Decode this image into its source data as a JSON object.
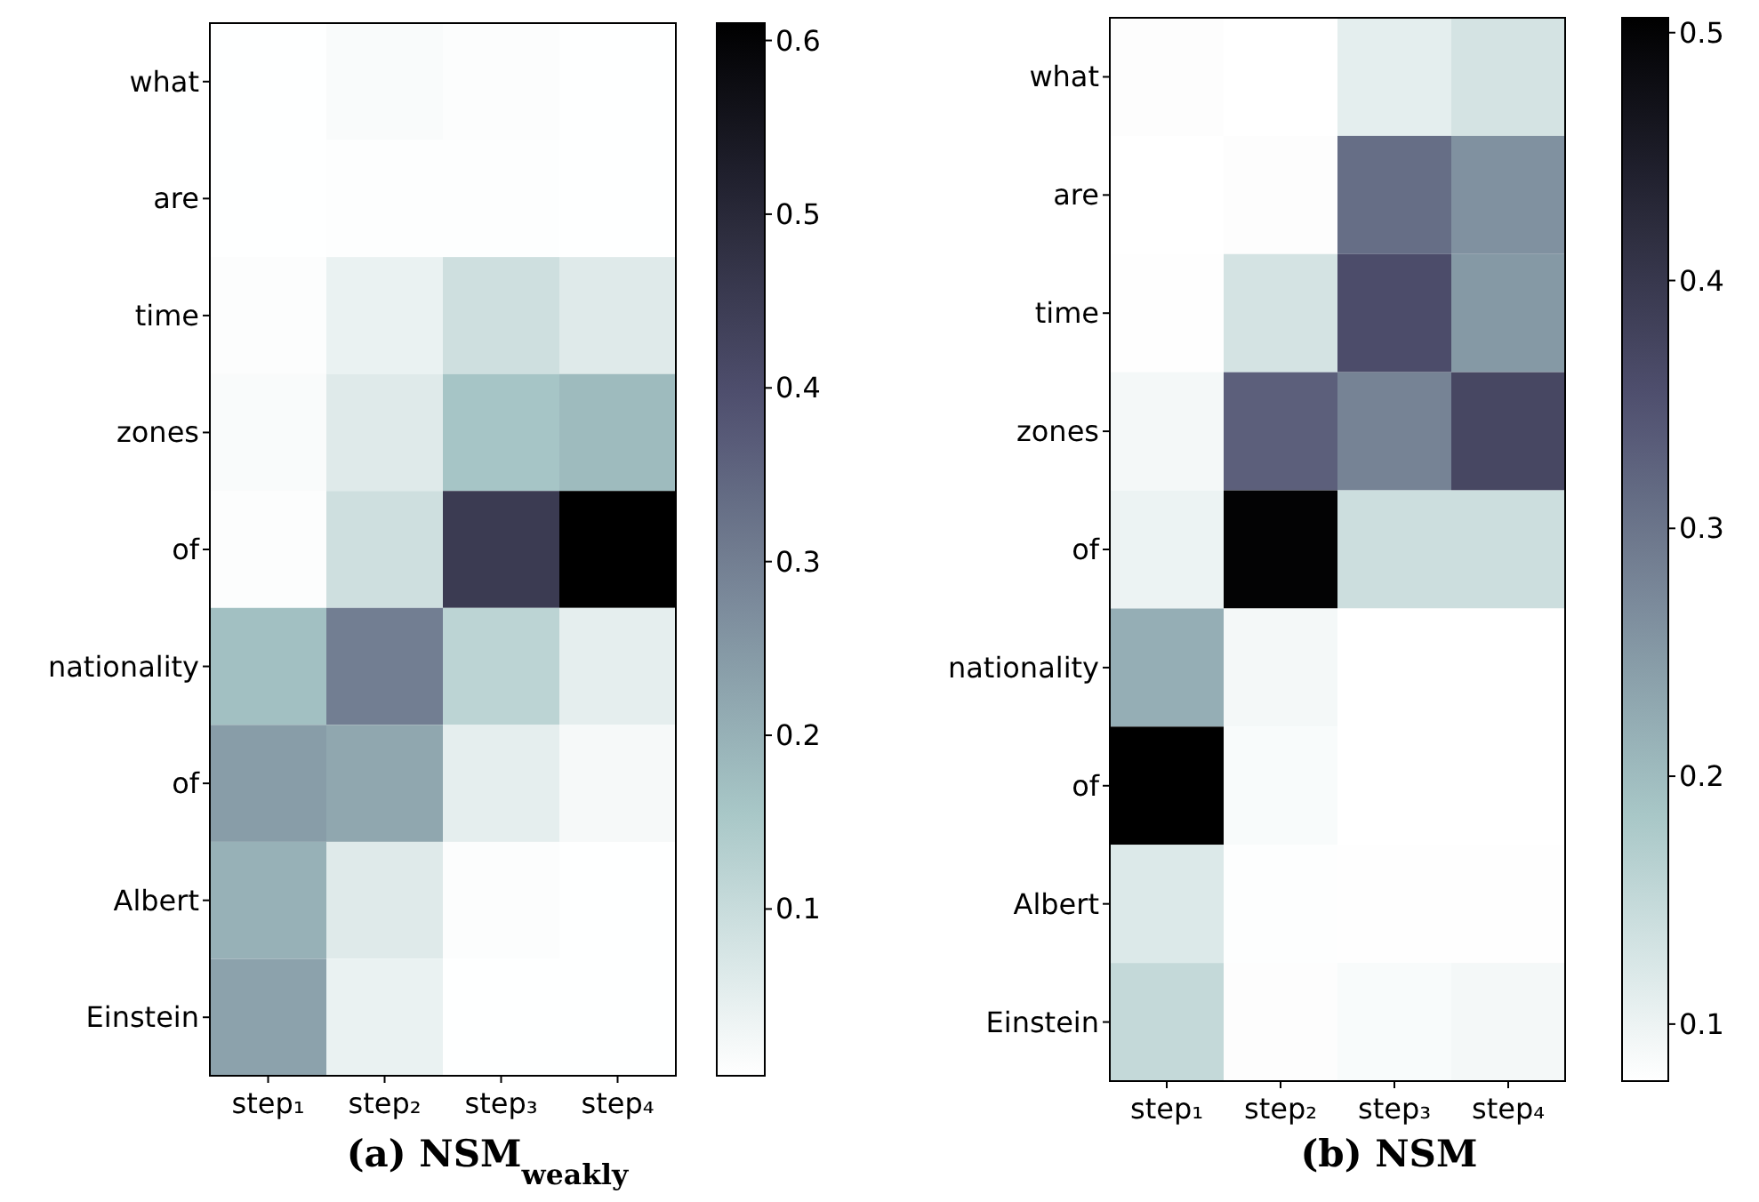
{
  "chart_data": [
    {
      "type": "heatmap",
      "title": "(a) NSM$_{weakly}$",
      "categories": [
        "step₁",
        "step₂",
        "step₃",
        "step₄"
      ],
      "y_categories": [
        "what",
        "are",
        "time",
        "zones",
        "of",
        "nationality",
        "of",
        "Albert",
        "Einstein"
      ],
      "cells": [
        [
          0.005,
          0.015,
          0.01,
          0.005
        ],
        [
          0.005,
          0.008,
          0.008,
          0.005
        ],
        [
          0.01,
          0.04,
          0.09,
          0.06
        ],
        [
          0.015,
          0.06,
          0.16,
          0.18
        ],
        [
          0.01,
          0.09,
          0.45,
          0.61
        ],
        [
          0.17,
          0.3,
          0.12,
          0.05
        ],
        [
          0.24,
          0.22,
          0.05,
          0.02
        ],
        [
          0.2,
          0.06,
          0.01,
          0.005
        ],
        [
          0.23,
          0.04,
          0.005,
          0.005
        ]
      ],
      "clim": [
        0.004,
        0.61
      ],
      "cticks": [
        0.1,
        0.2,
        0.3,
        0.4,
        0.5,
        0.6
      ]
    },
    {
      "type": "heatmap",
      "title": "(b) NSM",
      "categories": [
        "step₁",
        "step₂",
        "step₃",
        "step₄"
      ],
      "y_categories": [
        "what",
        "are",
        "time",
        "zones",
        "of",
        "nationality",
        "of",
        "Albert",
        "Einstein"
      ],
      "cells": [
        [
          0.08,
          0.077,
          0.11,
          0.13
        ],
        [
          0.077,
          0.08,
          0.31,
          0.26
        ],
        [
          0.078,
          0.13,
          0.36,
          0.25
        ],
        [
          0.09,
          0.33,
          0.28,
          0.37
        ],
        [
          0.1,
          0.5,
          0.14,
          0.14
        ],
        [
          0.22,
          0.09,
          0.077,
          0.077
        ],
        [
          0.506,
          0.085,
          0.077,
          0.077
        ],
        [
          0.12,
          0.079,
          0.078,
          0.078
        ],
        [
          0.15,
          0.08,
          0.085,
          0.09
        ]
      ],
      "clim": [
        0.077,
        0.506
      ],
      "cticks": [
        0.1,
        0.2,
        0.3,
        0.4,
        0.5
      ]
    }
  ]
}
